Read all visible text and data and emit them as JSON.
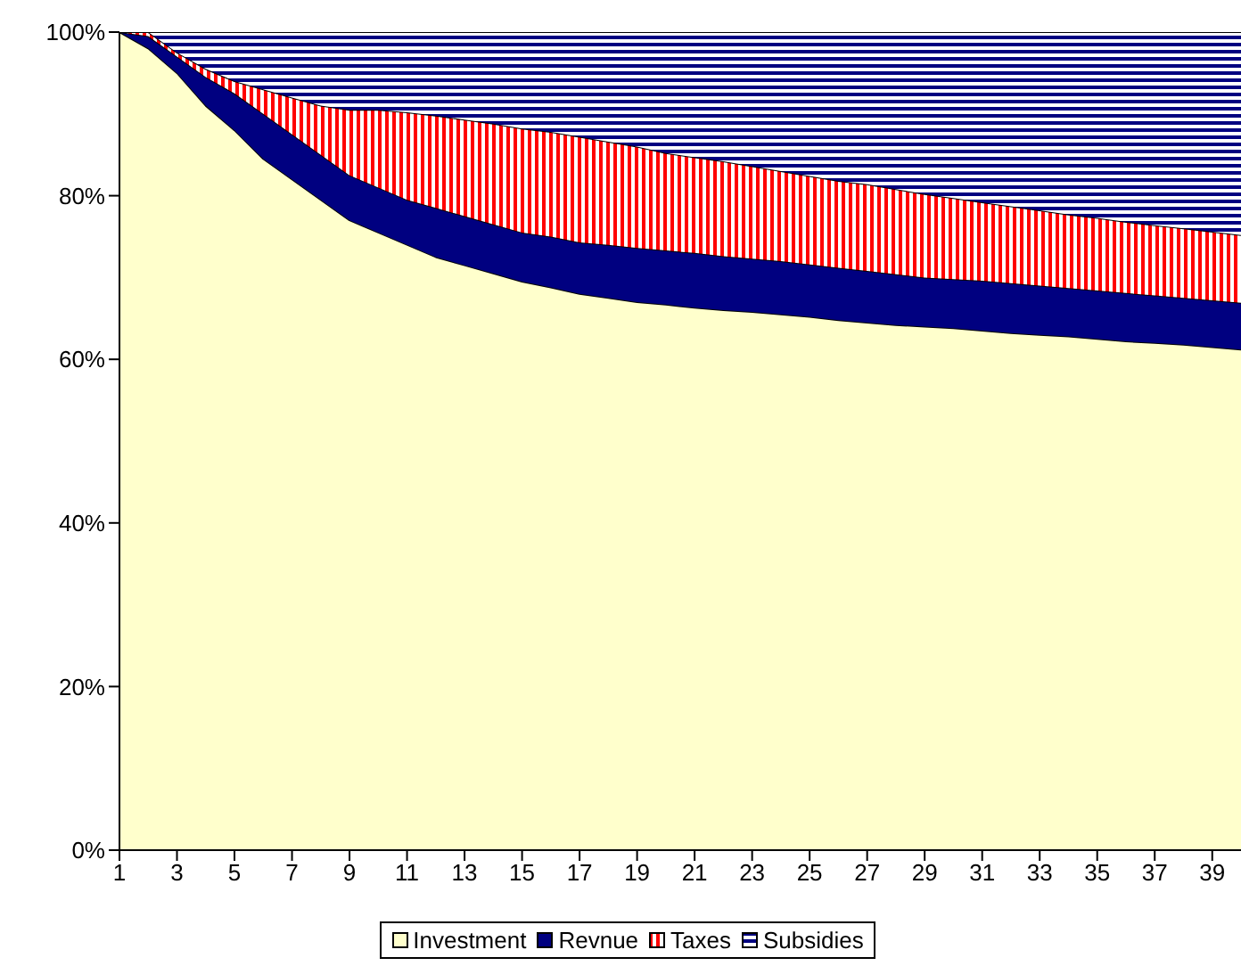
{
  "chart_data": {
    "type": "area",
    "stacked": true,
    "x": [
      1,
      2,
      3,
      4,
      5,
      6,
      7,
      8,
      9,
      10,
      11,
      12,
      13,
      14,
      15,
      16,
      17,
      18,
      19,
      20,
      21,
      22,
      23,
      24,
      25,
      26,
      27,
      28,
      29,
      30,
      31,
      32,
      33,
      34,
      35,
      36,
      37,
      38,
      39,
      40
    ],
    "xlim": [
      1,
      40
    ],
    "xticks": [
      1,
      3,
      5,
      7,
      9,
      11,
      13,
      15,
      17,
      19,
      21,
      23,
      25,
      27,
      29,
      31,
      33,
      35,
      37,
      39
    ],
    "series": [
      {
        "name": "Investment",
        "color": "#ffffcc",
        "values": [
          100,
          98,
          95,
          91,
          88,
          84.5,
          82,
          79.5,
          77,
          75.5,
          74,
          72.5,
          71.5,
          70.5,
          69.5,
          68.8,
          68,
          67.5,
          67,
          66.7,
          66.3,
          66,
          65.8,
          65.5,
          65.2,
          64.8,
          64.5,
          64.2,
          64,
          63.8,
          63.5,
          63.2,
          63,
          62.8,
          62.5,
          62.2,
          62,
          61.8,
          61.5,
          61.2
        ]
      },
      {
        "name": "Revnue",
        "color": "#000080",
        "values": [
          0,
          1.5,
          2,
          3.5,
          4.5,
          5.5,
          5.5,
          5.5,
          5.5,
          5.5,
          5.5,
          6,
          6,
          6,
          6,
          6.2,
          6.3,
          6.5,
          6.6,
          6.6,
          6.7,
          6.6,
          6.5,
          6.5,
          6.4,
          6.4,
          6.3,
          6.2,
          6,
          6,
          6.1,
          6.1,
          6,
          5.9,
          5.9,
          5.9,
          5.8,
          5.7,
          5.7,
          5.7
        ]
      },
      {
        "name": "Taxes",
        "color": "#ff0000",
        "values": [
          0,
          0.5,
          0.5,
          1,
          1.5,
          3,
          4.5,
          6,
          8,
          9.5,
          10.7,
          11.3,
          11.8,
          12.3,
          12.7,
          12.8,
          12.9,
          12.6,
          12.4,
          11.9,
          11.7,
          11.6,
          11.3,
          11,
          10.8,
          10.6,
          10.6,
          10.4,
          10.2,
          9.9,
          9.6,
          9.4,
          9.2,
          9,
          8.9,
          8.7,
          8.6,
          8.5,
          8.4,
          8.3
        ]
      },
      {
        "name": "Subsidies",
        "color": "#000080",
        "values": [
          0,
          0,
          2.5,
          4.5,
          6,
          7,
          8,
          9,
          9.5,
          9.5,
          9.8,
          10.2,
          10.7,
          11.2,
          11.8,
          12.2,
          12.8,
          13.4,
          14,
          14.8,
          15.3,
          15.8,
          16.4,
          17,
          17.6,
          18.2,
          18.6,
          19.2,
          19.8,
          20.3,
          20.8,
          21.3,
          21.8,
          22.3,
          22.7,
          23.2,
          23.6,
          24,
          24.4,
          24.8
        ]
      }
    ],
    "ylim": [
      0,
      100
    ],
    "yticks": [
      {
        "value": 0,
        "label": "0%"
      },
      {
        "value": 20,
        "label": "20%"
      },
      {
        "value": 40,
        "label": "40%"
      },
      {
        "value": 60,
        "label": "60%"
      },
      {
        "value": 80,
        "label": "80%"
      },
      {
        "value": 100,
        "label": "100%"
      }
    ],
    "grid": false,
    "legend": "bottom"
  }
}
